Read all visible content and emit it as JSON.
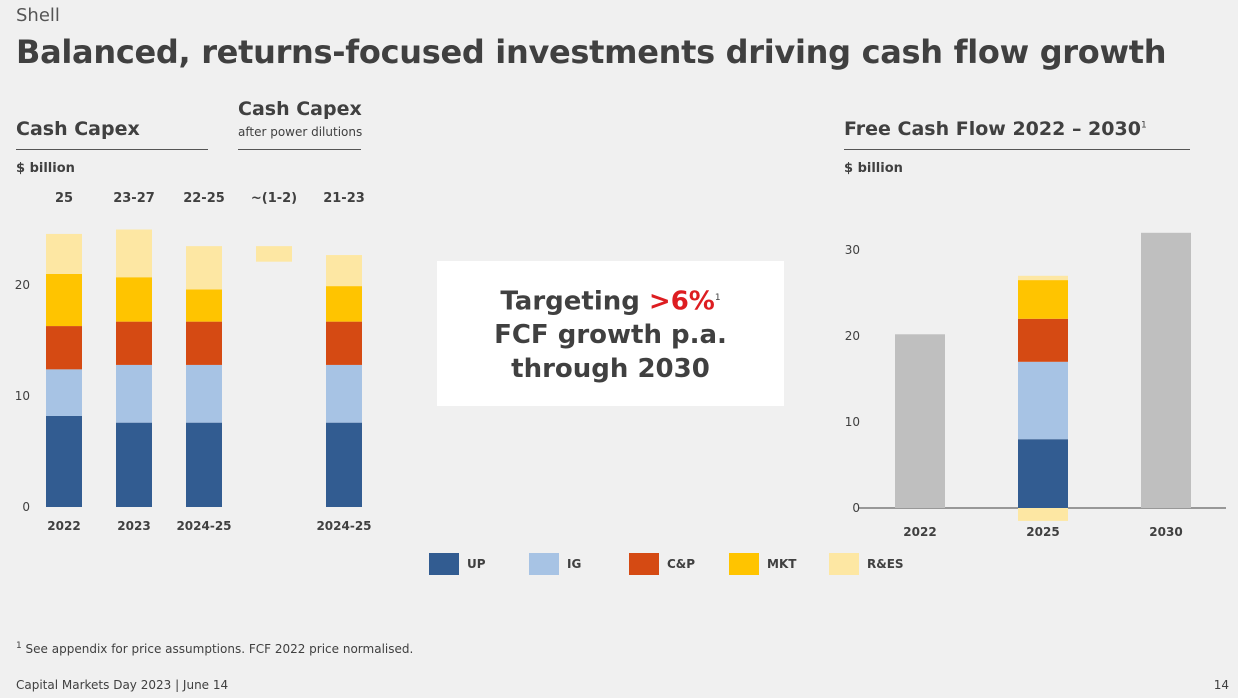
{
  "brand": "Shell",
  "title": "Balanced, returns-focused investments driving cash flow growth",
  "capex": {
    "heading": "Cash Capex",
    "heading2": "Cash Capex",
    "heading2_sub": "after power dilutions",
    "unit": "$ billion"
  },
  "fcf": {
    "heading": "Free Cash Flow 2022 – 2030",
    "heading_sup": "1",
    "unit": "$ billion"
  },
  "callout": {
    "line1_prefix": "Targeting ",
    "line1_highlight": ">6%",
    "line1_sup": "1",
    "line2": "FCF growth p.a.",
    "line3": "through 2030"
  },
  "legend": [
    {
      "label": "UP",
      "color": "#325c91"
    },
    {
      "label": "IG",
      "color": "#a7c3e4"
    },
    {
      "label": "C&P",
      "color": "#d54a13"
    },
    {
      "label": "MKT",
      "color": "#ffc400"
    },
    {
      "label": "R&ES",
      "color": "#fde7a3"
    }
  ],
  "footnote": {
    "sup": "1",
    "text": " See appendix for price assumptions. FCF 2022 price normalised."
  },
  "footer": "Capital Markets Day 2023  |  June 14",
  "page_number": "14",
  "chart_data": [
    {
      "type": "bar",
      "stacked": true,
      "title": "Cash Capex",
      "ylabel": "$ billion",
      "ylim": [
        0,
        25
      ],
      "yticks": [
        0,
        10,
        20
      ],
      "categories": [
        "2022",
        "2023",
        "2024-25",
        "",
        "2024-25"
      ],
      "top_labels": [
        "25",
        "23-27",
        "22-25",
        "~(1-2)",
        "21-23"
      ],
      "series": [
        {
          "name": "UP",
          "values": [
            8.2,
            7.6,
            7.6,
            0,
            7.6
          ]
        },
        {
          "name": "IG",
          "values": [
            4.2,
            5.2,
            5.2,
            0,
            5.2
          ]
        },
        {
          "name": "C&P",
          "values": [
            3.9,
            3.9,
            3.9,
            0,
            3.9
          ]
        },
        {
          "name": "MKT",
          "values": [
            4.7,
            4.0,
            2.9,
            0,
            3.2
          ]
        },
        {
          "name": "R&ES",
          "values": [
            3.6,
            4.3,
            3.9,
            0,
            2.8
          ]
        }
      ],
      "dilution_bar": {
        "category_index": 3,
        "from": 22.1,
        "to": 23.5
      }
    },
    {
      "type": "bar",
      "stacked": true,
      "title": "Free Cash Flow 2022 – 2030",
      "ylabel": "$ billion",
      "ylim": [
        0,
        32
      ],
      "yticks": [
        0,
        10,
        20,
        30
      ],
      "categories": [
        "2022",
        "2025",
        "2030"
      ],
      "series": [
        {
          "name": "Total",
          "values": [
            20.2,
            0,
            32
          ]
        },
        {
          "name": "UP",
          "values": [
            0,
            8,
            0
          ]
        },
        {
          "name": "IG",
          "values": [
            0,
            9,
            0
          ]
        },
        {
          "name": "C&P",
          "values": [
            0,
            5,
            0
          ]
        },
        {
          "name": "MKT",
          "values": [
            0,
            4.5,
            0
          ]
        },
        {
          "name": "R&ES",
          "values": [
            0,
            0.5,
            0
          ]
        }
      ],
      "negative": {
        "category_index": 1,
        "name": "R&ES",
        "value": -1.5
      }
    }
  ]
}
